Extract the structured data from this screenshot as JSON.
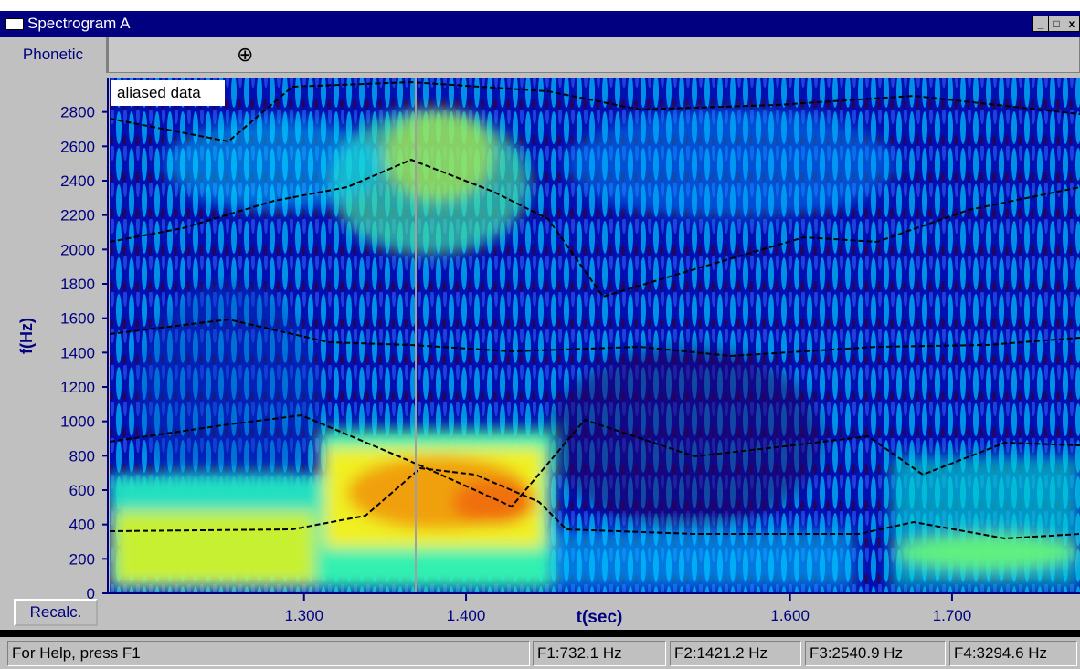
{
  "window": {
    "title": "Spectrogram A"
  },
  "toolbar": {
    "tab": "Phonetic",
    "button": "Recalc."
  },
  "plot": {
    "overlay_label": "aliased data",
    "y_label": "f(Hz)",
    "x_label": "t(sec)",
    "ylim": [
      0,
      3000
    ],
    "yticks": [
      0,
      200,
      400,
      600,
      800,
      1000,
      1200,
      1400,
      1600,
      1800,
      2000,
      2200,
      2400,
      2600,
      2800
    ],
    "xlim": [
      1.18,
      1.779
    ],
    "xticks": [
      {
        "value": 1.3,
        "label": "1.300"
      },
      {
        "value": 1.4,
        "label": "1.400"
      },
      {
        "value": 1.6,
        "label": "1.600"
      },
      {
        "value": 1.7,
        "label": "1.700"
      }
    ]
  },
  "status_bar": {
    "help": "For Help, press F1",
    "fields": [
      "F1:732.1 Hz",
      "F2:1421.2 Hz",
      "F3:2540.9 Hz",
      "F4:3294.6 Hz"
    ]
  }
}
